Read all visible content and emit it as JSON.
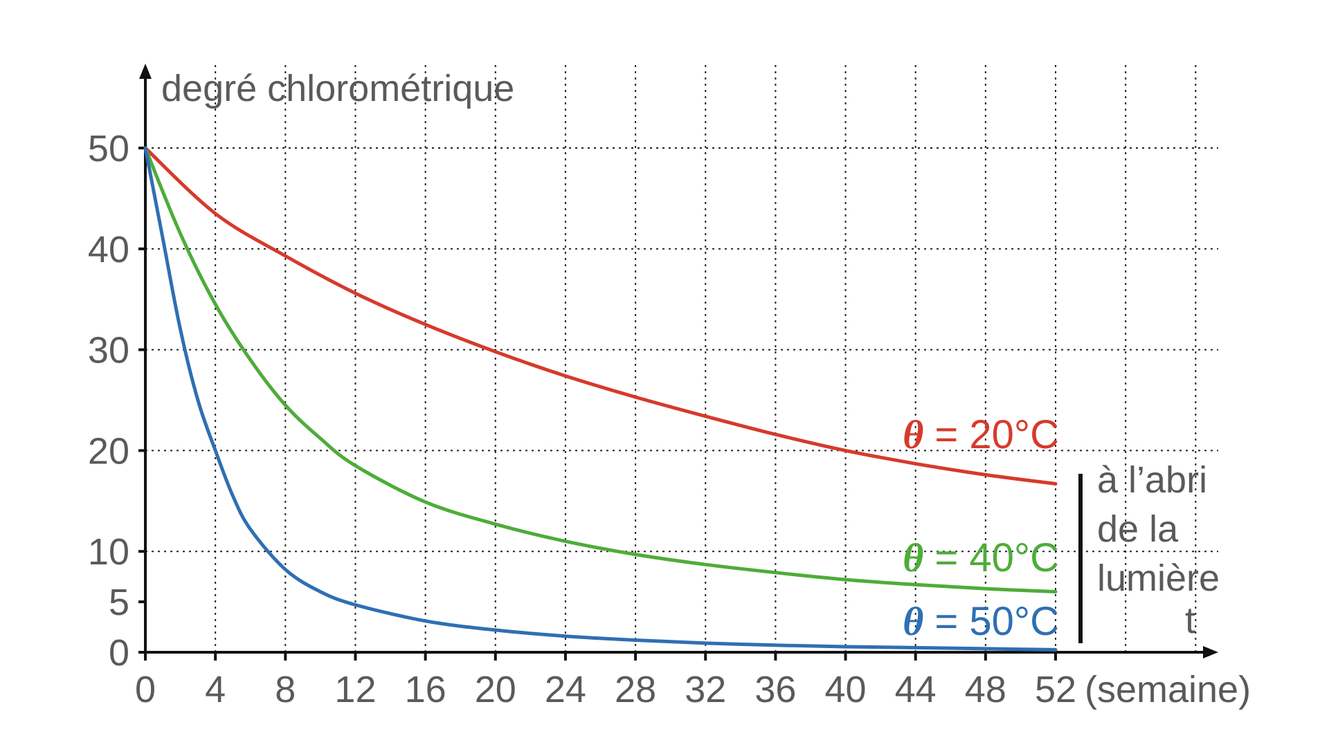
{
  "chart_data": {
    "type": "line",
    "title": "",
    "ylabel": "degré chlorométrique",
    "xlabel": "t",
    "xunit": "(semaine)",
    "xlim": [
      0,
      52
    ],
    "ylim": [
      0,
      50
    ],
    "xticks": [
      0,
      4,
      8,
      12,
      16,
      20,
      24,
      28,
      32,
      36,
      40,
      44,
      48,
      52
    ],
    "yticks": [
      0,
      5,
      10,
      20,
      30,
      40,
      50
    ],
    "grid": true,
    "annotation": {
      "lines": [
        "à l’abri",
        "de la",
        "lumière"
      ]
    },
    "series": [
      {
        "name": "θ = 20°C",
        "symbol": "θ",
        "label_rest": " = 20°C",
        "color": "#d63a2c",
        "x": [
          0,
          4,
          8,
          12,
          16,
          20,
          24,
          28,
          32,
          36,
          40,
          44,
          48,
          52
        ],
        "y": [
          50,
          43.5,
          39.3,
          35.6,
          32.5,
          29.8,
          27.4,
          25.3,
          23.4,
          21.6,
          20.0,
          18.7,
          17.6,
          16.7
        ]
      },
      {
        "name": "θ = 40°C",
        "symbol": "θ",
        "label_rest": " = 40°C",
        "color": "#4eac3a",
        "x": [
          0,
          2,
          4,
          6,
          8,
          10,
          12,
          16,
          20,
          24,
          28,
          32,
          36,
          40,
          44,
          48,
          52
        ],
        "y": [
          50,
          41.5,
          34.5,
          29.0,
          24.5,
          21.2,
          18.5,
          14.9,
          12.7,
          11.0,
          9.7,
          8.7,
          7.9,
          7.2,
          6.7,
          6.3,
          6.0
        ]
      },
      {
        "name": "θ = 50°C",
        "symbol": "θ",
        "label_rest": " = 50°C",
        "color": "#2f6fb3",
        "x": [
          0,
          1,
          2,
          3,
          4,
          5,
          6,
          8,
          10,
          12,
          16,
          20,
          24,
          28,
          32,
          36,
          40,
          44,
          48,
          52
        ],
        "y": [
          50,
          41,
          32,
          25,
          20,
          15.5,
          12.2,
          8.2,
          6.0,
          4.7,
          3.1,
          2.2,
          1.6,
          1.2,
          0.9,
          0.7,
          0.55,
          0.45,
          0.35,
          0.25
        ]
      }
    ]
  }
}
